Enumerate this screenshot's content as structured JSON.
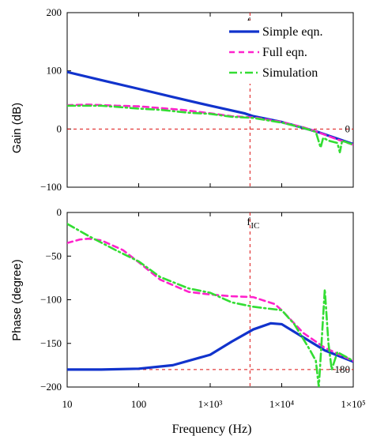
{
  "chart_data": [
    {
      "type": "line",
      "ylabel": "Gain (dB)",
      "xlabel": "",
      "xscale": "log",
      "xlim": [
        10,
        100000
      ],
      "ylim": [
        -100,
        200
      ],
      "xticks": [
        {
          "v": 10,
          "label": ""
        },
        {
          "v": 100,
          "label": ""
        },
        {
          "v": 1000,
          "label": ""
        },
        {
          "v": 10000,
          "label": ""
        },
        {
          "v": 100000,
          "label": ""
        }
      ],
      "yticks": [
        {
          "v": 200,
          "label": "200"
        },
        {
          "v": 100,
          "label": "100"
        },
        {
          "v": 0,
          "label": "0"
        },
        {
          "v": -100,
          "label": "−100"
        }
      ],
      "grid": false,
      "legend_position": "top-right",
      "reference_lines": {
        "horizontal": {
          "value": 0,
          "label": "0"
        },
        "vertical": {
          "value": 3600,
          "label_main": "f",
          "label_sub": "IC"
        }
      },
      "series": [
        {
          "name": "Simple eqn.",
          "color": "#1133cc",
          "style": "solid",
          "points": [
            [
              10,
              98
            ],
            [
              30,
              84
            ],
            [
              100,
              69
            ],
            [
              300,
              55
            ],
            [
              1000,
              40
            ],
            [
              3000,
              27
            ],
            [
              4000,
              22
            ],
            [
              10000,
              12
            ],
            [
              30000,
              -4
            ],
            [
              100000,
              -26
            ]
          ]
        },
        {
          "name": "Full eqn.",
          "color": "#ff22cc",
          "style": "dashed",
          "points": [
            [
              10,
              41
            ],
            [
              20,
              42
            ],
            [
              50,
              40
            ],
            [
              100,
              39
            ],
            [
              200,
              36
            ],
            [
              400,
              33
            ],
            [
              1000,
              27
            ],
            [
              2000,
              22
            ],
            [
              4000,
              20
            ],
            [
              10000,
              12
            ],
            [
              20000,
              3
            ],
            [
              30000,
              -4
            ],
            [
              60000,
              -18
            ],
            [
              100000,
              -27
            ]
          ]
        },
        {
          "name": "Simulation",
          "color": "#33dd33",
          "style": "dashdot",
          "points": [
            [
              10,
              40
            ],
            [
              30,
              40
            ],
            [
              50,
              38
            ],
            [
              100,
              35
            ],
            [
              200,
              33
            ],
            [
              500,
              28
            ],
            [
              1000,
              26
            ],
            [
              2000,
              21
            ],
            [
              4000,
              19
            ],
            [
              10000,
              11
            ],
            [
              20000,
              2
            ],
            [
              30000,
              -5
            ],
            [
              35000,
              -32
            ],
            [
              38000,
              -15
            ],
            [
              45000,
              -20
            ],
            [
              60000,
              -24
            ],
            [
              65000,
              -40
            ],
            [
              70000,
              -20
            ],
            [
              100000,
              -27
            ]
          ]
        }
      ]
    },
    {
      "type": "line",
      "ylabel": "Phase (degree)",
      "xlabel": "Frequency (Hz)",
      "xscale": "log",
      "xlim": [
        10,
        100000
      ],
      "ylim": [
        -200,
        0
      ],
      "xticks": [
        {
          "v": 10,
          "label": "10"
        },
        {
          "v": 100,
          "label": "100"
        },
        {
          "v": 1000,
          "label": "1×10³"
        },
        {
          "v": 10000,
          "label": "1×10⁴"
        },
        {
          "v": 100000,
          "label": "1×10⁵"
        }
      ],
      "yticks": [
        {
          "v": 0,
          "label": "0"
        },
        {
          "v": -50,
          "label": "−50"
        },
        {
          "v": -100,
          "label": "−100"
        },
        {
          "v": -150,
          "label": "−150"
        },
        {
          "v": -200,
          "label": "−200"
        }
      ],
      "grid": false,
      "reference_lines": {
        "horizontal": {
          "value": -180,
          "label": "−180"
        },
        "vertical": {
          "value": 3600,
          "label_main": "f",
          "label_sub": "IC"
        }
      },
      "series": [
        {
          "name": "Simple eqn.",
          "color": "#1133cc",
          "style": "solid",
          "points": [
            [
              10,
              -180
            ],
            [
              30,
              -180
            ],
            [
              100,
              -179
            ],
            [
              300,
              -175
            ],
            [
              1000,
              -163
            ],
            [
              2000,
              -148
            ],
            [
              4000,
              -134
            ],
            [
              7000,
              -127
            ],
            [
              10000,
              -128
            ],
            [
              20000,
              -143
            ],
            [
              40000,
              -158
            ],
            [
              100000,
              -171
            ]
          ]
        },
        {
          "name": "Full eqn.",
          "color": "#ff22cc",
          "style": "dashed",
          "points": [
            [
              10,
              -35
            ],
            [
              15,
              -31
            ],
            [
              20,
              -30
            ],
            [
              30,
              -32
            ],
            [
              60,
              -43
            ],
            [
              100,
              -57
            ],
            [
              200,
              -77
            ],
            [
              500,
              -91
            ],
            [
              1000,
              -94
            ],
            [
              2000,
              -96
            ],
            [
              4000,
              -97
            ],
            [
              8000,
              -105
            ],
            [
              10000,
              -112
            ],
            [
              20000,
              -138
            ],
            [
              40000,
              -155
            ],
            [
              100000,
              -170
            ]
          ]
        },
        {
          "name": "Simulation",
          "color": "#33dd33",
          "style": "dashdot",
          "points": [
            [
              10,
              -13
            ],
            [
              20,
              -27
            ],
            [
              50,
              -44
            ],
            [
              100,
              -56
            ],
            [
              200,
              -74
            ],
            [
              500,
              -87
            ],
            [
              1000,
              -92
            ],
            [
              2000,
              -103
            ],
            [
              4000,
              -108
            ],
            [
              10000,
              -112
            ],
            [
              15000,
              -128
            ],
            [
              25000,
              -158
            ],
            [
              30000,
              -170
            ],
            [
              33000,
              -200
            ],
            [
              36000,
              -150
            ],
            [
              40000,
              -88
            ],
            [
              45000,
              -150
            ],
            [
              50000,
              -180
            ],
            [
              60000,
              -160
            ],
            [
              100000,
              -170
            ]
          ]
        }
      ]
    }
  ]
}
